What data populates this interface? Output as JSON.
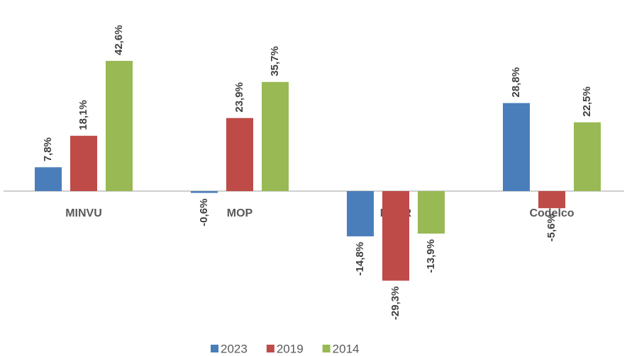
{
  "chart_data": {
    "type": "bar",
    "categories": [
      "MINVU",
      "MOP",
      "FNDR",
      "Codelco"
    ],
    "series": [
      {
        "name": "2023",
        "color": "#4a7ebb",
        "values": [
          7.8,
          -0.6,
          -14.8,
          28.8
        ],
        "value_labels": [
          "7,8%",
          "-0,6%",
          "-14,8%",
          "28,8%"
        ]
      },
      {
        "name": "2019",
        "color": "#be4b48",
        "values": [
          18.1,
          23.9,
          -29.3,
          -5.6
        ],
        "value_labels": [
          "18,1%",
          "23,9%",
          "-29,3%",
          "-5,6%"
        ]
      },
      {
        "name": "2014",
        "color": "#98b954",
        "values": [
          42.6,
          35.7,
          -13.9,
          22.5
        ],
        "value_labels": [
          "42,6%",
          "35,7%",
          "-13,9%",
          "22,5%"
        ]
      }
    ],
    "legend": "bottom"
  }
}
